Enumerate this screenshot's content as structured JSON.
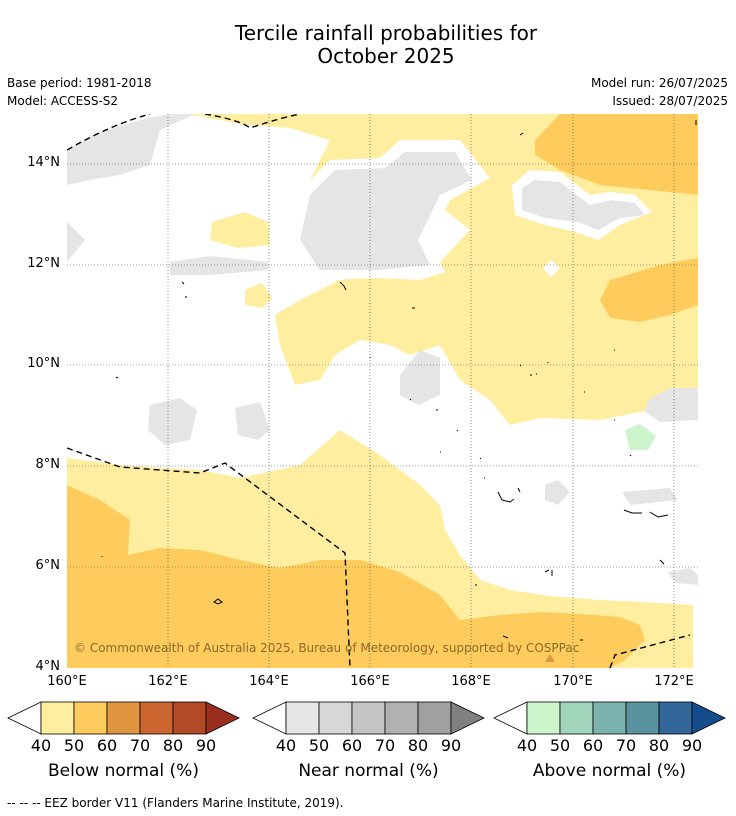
{
  "title_line1": "Tercile rainfall probabilities for",
  "title_line2": "October 2025",
  "meta_left": [
    "Base period: 1981-2018",
    "Model: ACCESS-S2"
  ],
  "meta_right": [
    "Model run: 26/07/2025",
    "Issued: 28/07/2025"
  ],
  "copyright": "© Commonwealth of Australia 2025, Bureau of Meteorology, supported by COSPPac",
  "footer": "-- -- -- EEZ border V11 (Flanders Marine Institute, 2019).",
  "map": {
    "lat_labels": [
      "14°N",
      "12°N",
      "10°N",
      "8°N",
      "6°N",
      "4°N"
    ],
    "lon_labels": [
      "160°E",
      "162°E",
      "164°E",
      "166°E",
      "168°E",
      "170°E",
      "172°E"
    ]
  },
  "colorbars": [
    {
      "title": "Below normal (%)",
      "ticks": [
        "40",
        "50",
        "60",
        "70",
        "80",
        "90"
      ],
      "colors": [
        "#ffeda0",
        "#fecc5c",
        "#e0953f",
        "#cc6530",
        "#b24a28",
        "#992e1c"
      ],
      "under": "#ffffff"
    },
    {
      "title": "Near normal (%)",
      "ticks": [
        "40",
        "50",
        "60",
        "70",
        "80",
        "90"
      ],
      "colors": [
        "#e6e6e6",
        "#d7d7d7",
        "#c4c4c4",
        "#b1b1b1",
        "#a0a0a0",
        "#808080"
      ],
      "under": "#ffffff"
    },
    {
      "title": "Above normal (%)",
      "ticks": [
        "40",
        "50",
        "60",
        "70",
        "80",
        "90"
      ],
      "colors": [
        "#ccf5cc",
        "#a1d5bc",
        "#7db3ae",
        "#5a929f",
        "#336699",
        "#144c8c"
      ],
      "under": "#ffffff"
    }
  ]
}
